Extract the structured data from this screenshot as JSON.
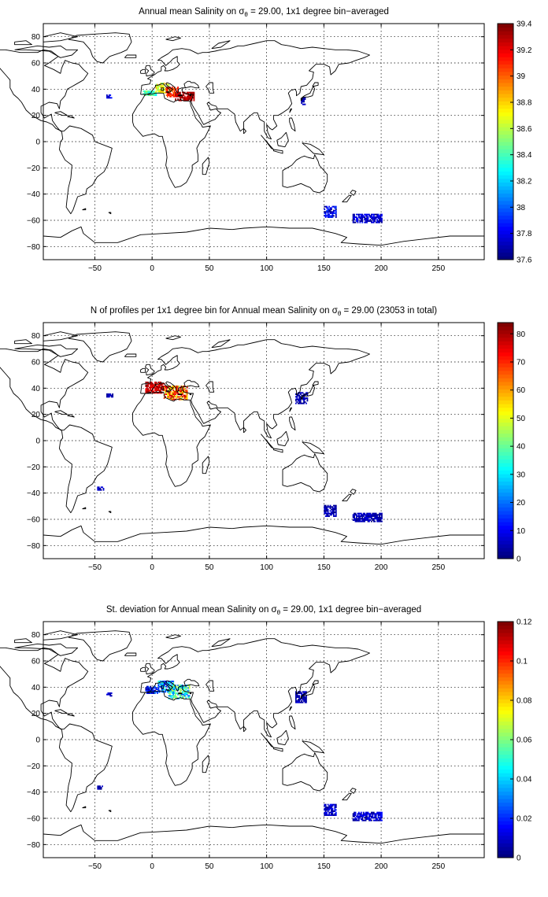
{
  "panels": [
    {
      "id": "salinity",
      "title": {
        "pre": "Annual mean Salinity on ",
        "sym": "σ",
        "sub": "θ",
        "post": " = 29.00, 1x1 degree bin−averaged"
      },
      "colorbar": {
        "min": 37.6,
        "max": 39.4,
        "ticks": [
          "37.6",
          "37.8",
          "38",
          "38.2",
          "38.4",
          "38.6",
          "38.8",
          "39",
          "39.2",
          "39.4"
        ]
      },
      "clusters": [
        {
          "lon": [
            -8,
            3
          ],
          "lat": [
            35,
            38
          ],
          "v": [
            0.35,
            0.55
          ]
        },
        {
          "lon": [
            3,
            14
          ],
          "lat": [
            37,
            44
          ],
          "v": [
            0.5,
            0.7
          ]
        },
        {
          "lon": [
            12,
            22
          ],
          "lat": [
            34,
            41
          ],
          "v": [
            0.75,
            0.9
          ]
        },
        {
          "lon": [
            20,
            36
          ],
          "lat": [
            31,
            37
          ],
          "v": [
            0.9,
            1.0
          ]
        },
        {
          "lon": [
            -40,
            -36
          ],
          "lat": [
            33,
            35
          ],
          "v": [
            0.05,
            0.15
          ]
        },
        {
          "lon": [
            130,
            133
          ],
          "lat": [
            28,
            33
          ],
          "v": [
            0.0,
            0.1
          ]
        },
        {
          "lon": [
            150,
            160
          ],
          "lat": [
            -58,
            -50
          ],
          "v": [
            0.0,
            0.2
          ]
        },
        {
          "lon": [
            175,
            200
          ],
          "lat": [
            -62,
            -56
          ],
          "v": [
            0.0,
            0.15
          ]
        }
      ]
    },
    {
      "id": "nprofiles",
      "title": {
        "pre": "N of profiles per 1x1 degree bin for Annual mean Salinity on ",
        "sym": "σ",
        "sub": "θ",
        "post": " = 29.00 (23053 in total)"
      },
      "colorbar": {
        "min": 0,
        "max": 84,
        "ticks": [
          "0",
          "10",
          "20",
          "30",
          "40",
          "50",
          "60",
          "70",
          "80"
        ]
      },
      "clusters": [
        {
          "lon": [
            -6,
            10
          ],
          "lat": [
            36,
            44
          ],
          "v": [
            0.85,
            1.0
          ]
        },
        {
          "lon": [
            10,
            30
          ],
          "lat": [
            31,
            41
          ],
          "v": [
            0.55,
            1.0
          ]
        },
        {
          "lon": [
            -40,
            -35
          ],
          "lat": [
            33,
            35
          ],
          "v": [
            0.0,
            0.1
          ]
        },
        {
          "lon": [
            -48,
            -43
          ],
          "lat": [
            -38,
            -36
          ],
          "v": [
            0.0,
            0.1
          ]
        },
        {
          "lon": [
            125,
            135
          ],
          "lat": [
            28,
            36
          ],
          "v": [
            0.0,
            0.1
          ]
        },
        {
          "lon": [
            150,
            160
          ],
          "lat": [
            -58,
            -50
          ],
          "v": [
            0.0,
            0.1
          ]
        },
        {
          "lon": [
            175,
            200
          ],
          "lat": [
            -62,
            -56
          ],
          "v": [
            0.0,
            0.1
          ]
        }
      ]
    },
    {
      "id": "stddev",
      "title": {
        "pre": "St. deviation for Annual mean Salinity on ",
        "sym": "σ",
        "sub": "θ",
        "post": " = 29.00, 1x1 degree bin−averaged"
      },
      "colorbar": {
        "min": 0,
        "max": 0.12,
        "ticks": [
          "0",
          "0.02",
          "0.04",
          "0.06",
          "0.08",
          "0.1",
          "0.12"
        ]
      },
      "clusters": [
        {
          "lon": [
            -6,
            5
          ],
          "lat": [
            35,
            40
          ],
          "v": [
            0.0,
            0.25
          ]
        },
        {
          "lon": [
            5,
            18
          ],
          "lat": [
            36,
            44
          ],
          "v": [
            0.1,
            0.45
          ]
        },
        {
          "lon": [
            14,
            32
          ],
          "lat": [
            31,
            41
          ],
          "v": [
            0.2,
            0.6
          ]
        },
        {
          "lon": [
            -40,
            -36
          ],
          "lat": [
            33,
            35
          ],
          "v": [
            0.0,
            0.1
          ]
        },
        {
          "lon": [
            -48,
            -44
          ],
          "lat": [
            -38,
            -36
          ],
          "v": [
            0.0,
            0.1
          ]
        },
        {
          "lon": [
            125,
            134
          ],
          "lat": [
            28,
            36
          ],
          "v": [
            0.0,
            0.1
          ]
        },
        {
          "lon": [
            150,
            160
          ],
          "lat": [
            -58,
            -50
          ],
          "v": [
            0.0,
            0.15
          ]
        },
        {
          "lon": [
            175,
            200
          ],
          "lat": [
            -62,
            -56
          ],
          "v": [
            0.0,
            0.15
          ]
        }
      ]
    }
  ],
  "chart_data": [
    {
      "type": "heatmap",
      "title": "Annual mean Salinity on σθ = 29.00, 1x1 degree bin−averaged",
      "xlim": [
        -95,
        290
      ],
      "ylim": [
        -90,
        90
      ],
      "xticks": [
        -50,
        0,
        50,
        100,
        150,
        200,
        250
      ],
      "yticks": [
        -80,
        -60,
        -40,
        -20,
        0,
        20,
        40,
        60,
        80
      ],
      "grid": true,
      "colorbar_range": [
        37.6,
        39.4
      ]
    },
    {
      "type": "heatmap",
      "title": "N of profiles per 1x1 degree bin for Annual mean Salinity on σθ = 29.00 (23053 in total)",
      "xlim": [
        -95,
        290
      ],
      "ylim": [
        -90,
        90
      ],
      "xticks": [
        -50,
        0,
        50,
        100,
        150,
        200,
        250
      ],
      "yticks": [
        -80,
        -60,
        -40,
        -20,
        0,
        20,
        40,
        60,
        80
      ],
      "grid": true,
      "colorbar_range": [
        0,
        84
      ]
    },
    {
      "type": "heatmap",
      "title": "St. deviation for Annual mean Salinity on σθ = 29.00, 1x1 degree bin−averaged",
      "xlim": [
        -95,
        290
      ],
      "ylim": [
        -90,
        90
      ],
      "xticks": [
        -50,
        0,
        50,
        100,
        150,
        200,
        250
      ],
      "yticks": [
        -80,
        -60,
        -40,
        -20,
        0,
        20,
        40,
        60,
        80
      ],
      "grid": true,
      "colorbar_range": [
        0,
        0.12
      ]
    }
  ]
}
